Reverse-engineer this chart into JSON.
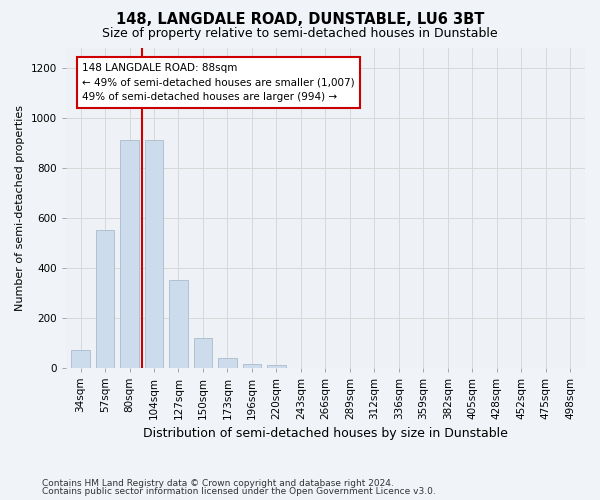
{
  "title": "148, LANGDALE ROAD, DUNSTABLE, LU6 3BT",
  "subtitle": "Size of property relative to semi-detached houses in Dunstable",
  "xlabel": "Distribution of semi-detached houses by size in Dunstable",
  "ylabel": "Number of semi-detached properties",
  "footnote1": "Contains HM Land Registry data © Crown copyright and database right 2024.",
  "footnote2": "Contains public sector information licensed under the Open Government Licence v3.0.",
  "bar_labels": [
    "34sqm",
    "57sqm",
    "80sqm",
    "104sqm",
    "127sqm",
    "150sqm",
    "173sqm",
    "196sqm",
    "220sqm",
    "243sqm",
    "266sqm",
    "289sqm",
    "312sqm",
    "336sqm",
    "359sqm",
    "382sqm",
    "405sqm",
    "428sqm",
    "452sqm",
    "475sqm",
    "498sqm"
  ],
  "bar_values": [
    70,
    550,
    910,
    910,
    350,
    120,
    40,
    15,
    10,
    0,
    0,
    0,
    0,
    0,
    0,
    0,
    0,
    0,
    0,
    0,
    0
  ],
  "bar_color": "#ccdcec",
  "bar_edge_color": "#aabccc",
  "grid_color": "#d8d8d8",
  "vline_x_index": 2.52,
  "vline_color": "#cc0000",
  "annotation_line1": "148 LANGDALE ROAD: 88sqm",
  "annotation_line2": "← 49% of semi-detached houses are smaller (1,007)",
  "annotation_line3": "49% of semi-detached houses are larger (994) →",
  "annotation_box_color": "#ffffff",
  "annotation_box_edge": "#cc0000",
  "ylim": [
    0,
    1280
  ],
  "yticks": [
    0,
    200,
    400,
    600,
    800,
    1000,
    1200
  ],
  "background_color": "#f0f4f8",
  "plot_bg_color": "#eef2f6",
  "title_fontsize": 10.5,
  "subtitle_fontsize": 9,
  "axis_ylabel_fontsize": 8,
  "axis_xlabel_fontsize": 9,
  "tick_fontsize": 7.5,
  "annotation_fontsize": 7.5,
  "footnote_fontsize": 6.5
}
